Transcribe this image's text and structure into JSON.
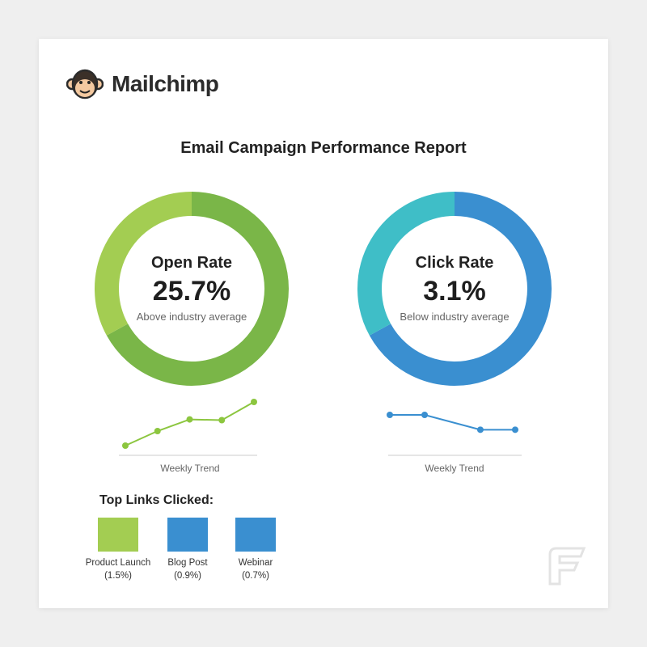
{
  "brand": {
    "name": "Mailchimp"
  },
  "chart_data": {
    "title": "Email Campaign Performance Report",
    "donuts": [
      {
        "name": "Open Rate",
        "value": "25.7%",
        "note": "Above industry average",
        "type": "pie",
        "colors": {
          "primary": "#7ab648",
          "secondary": "#a3cd52"
        },
        "primary_fraction": 0.67
      },
      {
        "name": "Click Rate",
        "value": "3.1%",
        "note": "Below industry average",
        "type": "pie",
        "colors": {
          "primary": "#3a8fd0",
          "secondary": "#3fbec7"
        },
        "primary_fraction": 0.67
      }
    ],
    "trends": [
      {
        "label": "Weekly Trend",
        "type": "line",
        "color": "#8cc63f",
        "values": [
          1.0,
          2.0,
          2.8,
          2.75,
          4.0
        ],
        "ylim": [
          0.6,
          4.4
        ]
      },
      {
        "label": "Weekly Trend",
        "type": "line",
        "color": "#3a8fd0",
        "values": [
          3.0,
          3.0,
          1.9,
          1.9
        ],
        "ylim": [
          0.0,
          3.6
        ],
        "x_positions": [
          0,
          1,
          2.6,
          3.6
        ]
      }
    ],
    "top_links": {
      "title": "Top Links Clicked:",
      "type": "bar",
      "items": [
        {
          "name": "Product Launch",
          "value": "(1.5%)",
          "color": "#a3cd52"
        },
        {
          "name": "Blog Post",
          "value": "(0.9%)",
          "color": "#3a8fd0"
        },
        {
          "name": "Webinar",
          "value": "(0.7%)",
          "color": "#3a8fd0"
        }
      ]
    }
  }
}
